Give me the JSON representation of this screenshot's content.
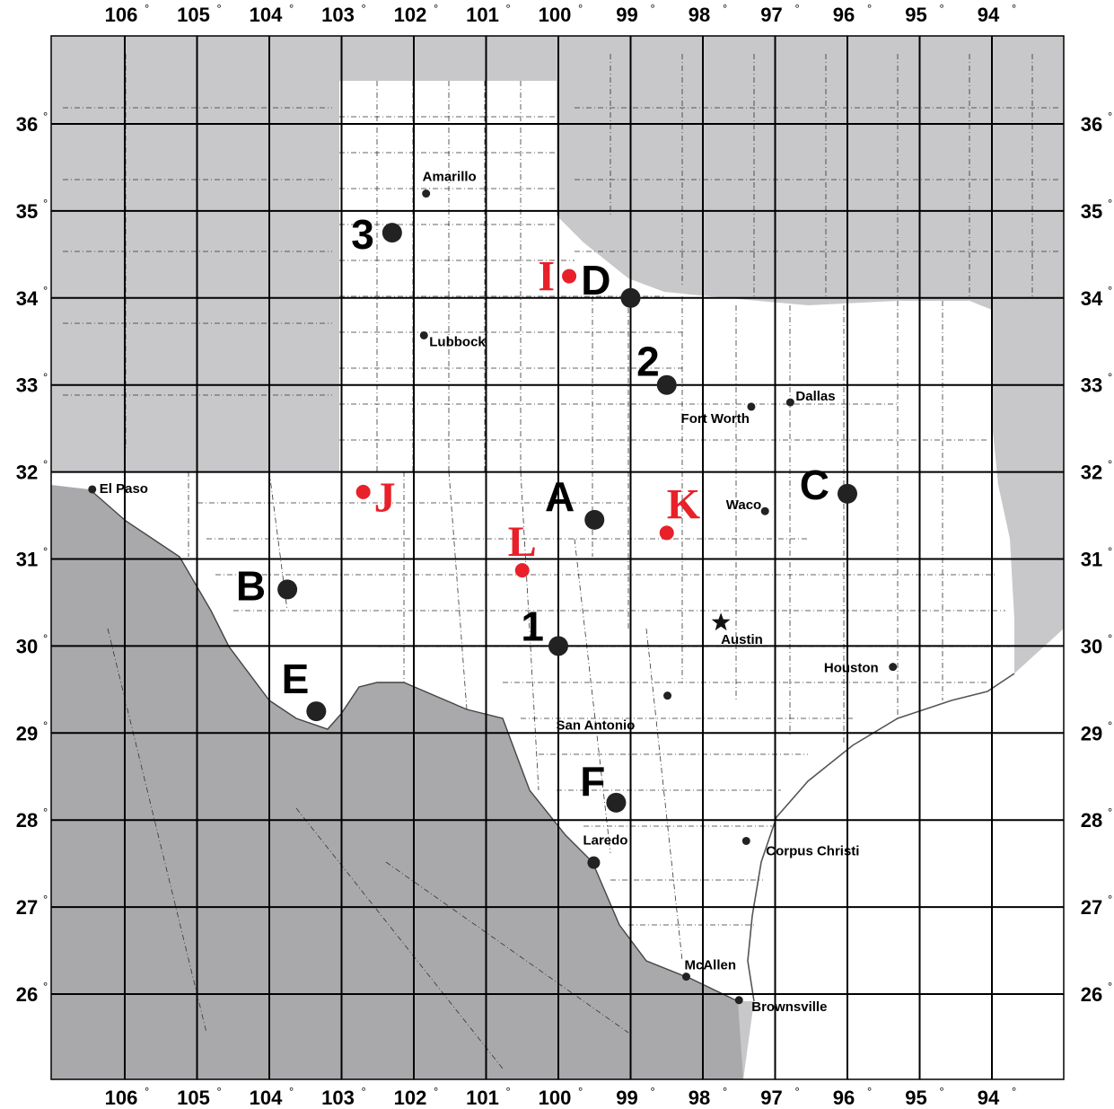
{
  "map": {
    "degree_symbol": "°",
    "longitude_ticks": [
      "106",
      "105",
      "104",
      "103",
      "102",
      "101",
      "100",
      "99",
      "98",
      "97",
      "96",
      "95",
      "94"
    ],
    "latitude_ticks": [
      "36",
      "35",
      "34",
      "33",
      "32",
      "31",
      "30",
      "29",
      "28",
      "27",
      "26"
    ],
    "cities": [
      {
        "name": "Amarillo",
        "lon": -101.83,
        "lat": 35.2
      },
      {
        "name": "Lubbock",
        "lon": -101.86,
        "lat": 33.57
      },
      {
        "name": "Dallas",
        "lon": -96.79,
        "lat": 32.8
      },
      {
        "name": "Fort Worth",
        "lon": -97.33,
        "lat": 32.75
      },
      {
        "name": "El Paso",
        "lon": -106.45,
        "lat": 31.8
      },
      {
        "name": "Waco",
        "lon": -97.14,
        "lat": 31.55
      },
      {
        "name": "Austin",
        "lon": -97.75,
        "lat": 30.27,
        "capital": true
      },
      {
        "name": "Houston",
        "lon": -95.37,
        "lat": 29.76
      },
      {
        "name": "San Antonio",
        "lon": -98.49,
        "lat": 29.43
      },
      {
        "name": "Laredo",
        "lon": -99.51,
        "lat": 27.51
      },
      {
        "name": "Corpus Christi",
        "lon": -97.4,
        "lat": 27.76
      },
      {
        "name": "McAllen",
        "lon": -98.23,
        "lat": 26.2
      },
      {
        "name": "Brownsville",
        "lon": -97.5,
        "lat": 25.93
      }
    ],
    "sites": [
      {
        "label": "A",
        "lon": -99.5,
        "lat": 31.45,
        "color": "#222222"
      },
      {
        "label": "B",
        "lon": -103.75,
        "lat": 30.65,
        "color": "#222222"
      },
      {
        "label": "C",
        "lon": -96.0,
        "lat": 31.75,
        "color": "#222222"
      },
      {
        "label": "D",
        "lon": -99.0,
        "lat": 34.0,
        "color": "#222222"
      },
      {
        "label": "E",
        "lon": -103.35,
        "lat": 29.25,
        "color": "#222222"
      },
      {
        "label": "F",
        "lon": -99.2,
        "lat": 28.2,
        "color": "#222222"
      },
      {
        "label": "1",
        "lon": -100.0,
        "lat": 30.0,
        "color": "#222222"
      },
      {
        "label": "2",
        "lon": -98.5,
        "lat": 33.0,
        "color": "#222222"
      },
      {
        "label": "3",
        "lon": -102.3,
        "lat": 34.75,
        "color": "#222222"
      },
      {
        "label": "I",
        "lon": -99.85,
        "lat": 34.25,
        "color": "#e8202a"
      },
      {
        "label": "J",
        "lon": -102.7,
        "lat": 31.77,
        "color": "#e8202a"
      },
      {
        "label": "K",
        "lon": -98.5,
        "lat": 31.3,
        "color": "#e8202a"
      },
      {
        "label": "L",
        "lon": -100.5,
        "lat": 30.87,
        "color": "#e8202a"
      }
    ],
    "colors": {
      "texas_land": "#ffffff",
      "outside_land": "#c8c8ca",
      "mexico": "#a9a9ab",
      "gulf_water": "#ffffff",
      "site_marker": "#222222",
      "highlight": "#e8202a",
      "grid": "#000000"
    }
  }
}
